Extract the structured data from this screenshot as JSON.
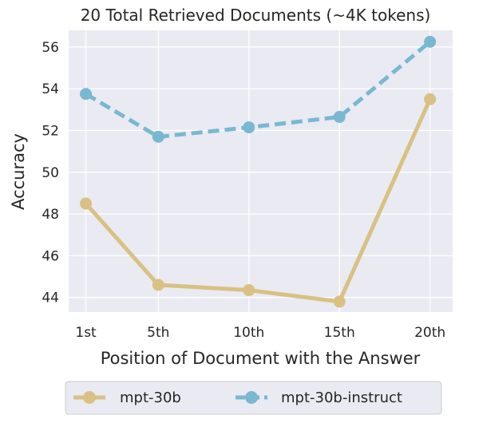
{
  "chart_data": {
    "type": "line",
    "title": "20 Total Retrieved Documents (~4K tokens)",
    "xlabel": "Position of Document with the Answer",
    "ylabel": "Accuracy",
    "categories": [
      "1st",
      "5th",
      "10th",
      "15th",
      "20th"
    ],
    "x": [
      1,
      5,
      10,
      15,
      20
    ],
    "xlim": [
      0.05,
      21.25
    ],
    "ylim": [
      43.3,
      56.8
    ],
    "yticks": [
      44,
      46,
      48,
      50,
      52,
      54,
      56
    ],
    "grid": true,
    "legend_position": "bottom",
    "series": [
      {
        "name": "mpt-30b",
        "values": [
          48.5,
          44.6,
          44.35,
          43.8,
          53.5
        ],
        "color": "#d8c183",
        "style": "solid"
      },
      {
        "name": "mpt-30b-instruct",
        "values": [
          53.75,
          51.7,
          52.15,
          52.65,
          56.25
        ],
        "color": "#79b8d1",
        "style": "dashed"
      }
    ]
  },
  "colors": {
    "plot_background": "#eaeaf2",
    "grid": "#ffffff",
    "text": "#262626"
  }
}
